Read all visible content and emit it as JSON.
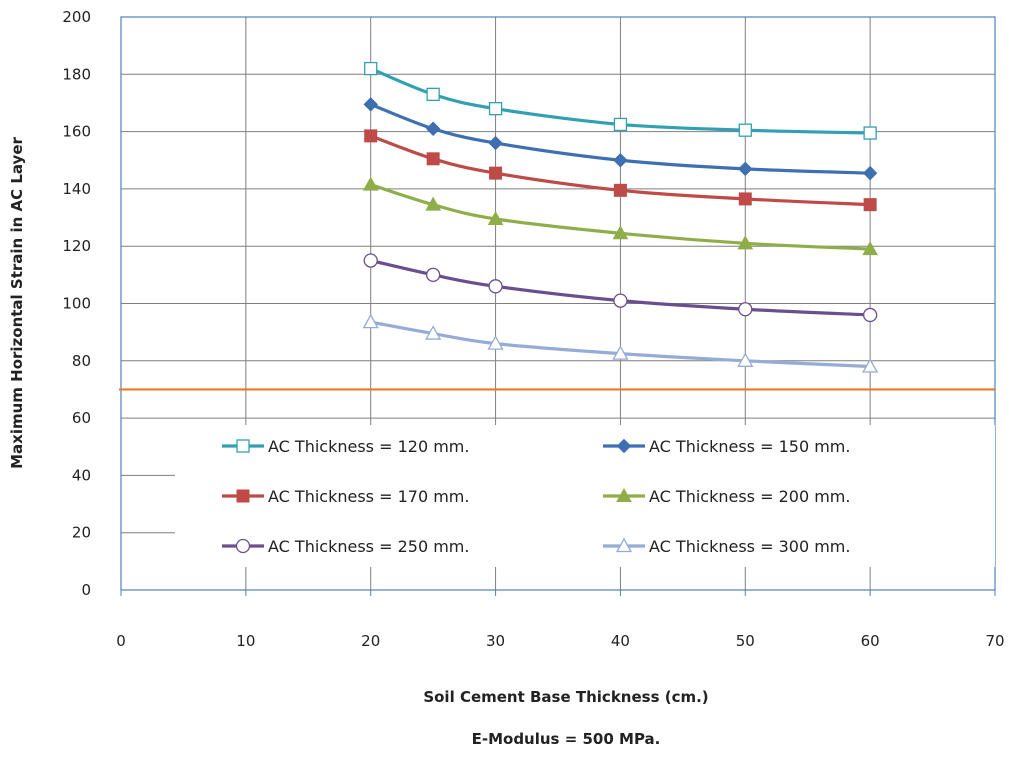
{
  "chart_data": {
    "type": "line",
    "title": "",
    "xlabel": "Soil Cement Base Thickness (cm.)",
    "subtitle": "E-Modulus = 500 MPa.",
    "ylabel": "Maximum Horizontal Strain in AC Layer",
    "xlim": [
      0,
      70
    ],
    "ylim": [
      0,
      200
    ],
    "x_ticks": [
      0,
      10,
      20,
      30,
      40,
      50,
      60,
      70
    ],
    "y_ticks": [
      0,
      20,
      40,
      60,
      80,
      100,
      120,
      140,
      160,
      180,
      200
    ],
    "grid": true,
    "legend_position": "inside-bottom",
    "x": [
      20,
      25,
      30,
      40,
      50,
      60
    ],
    "series": [
      {
        "name": "AC Thickness = 120 mm.",
        "values": [
          182,
          173,
          168,
          162.5,
          160.5,
          159.5
        ],
        "color": "#31a0b3",
        "marker": "square-open"
      },
      {
        "name": "AC Thickness = 150 mm.",
        "values": [
          169.5,
          161,
          156,
          150,
          147,
          145.5
        ],
        "color": "#3e6fb0",
        "marker": "diamond"
      },
      {
        "name": "AC Thickness = 170 mm.",
        "values": [
          158.5,
          150.5,
          145.5,
          139.5,
          136.5,
          134.5
        ],
        "color": "#be4b48",
        "marker": "square"
      },
      {
        "name": "AC Thickness = 200 mm.",
        "values": [
          141.5,
          134.5,
          129.5,
          124.5,
          121,
          119
        ],
        "color": "#8fae4a",
        "marker": "triangle"
      },
      {
        "name": "AC Thickness = 250 mm.",
        "values": [
          115,
          110,
          106,
          101,
          98,
          96
        ],
        "color": "#6b4e8f",
        "marker": "circle-open"
      },
      {
        "name": "AC Thickness = 300 mm.",
        "values": [
          93.5,
          89.5,
          86,
          82.5,
          80,
          78
        ],
        "color": "#95acd6",
        "marker": "triangle-open"
      }
    ],
    "reference_line": {
      "y": 70,
      "color": "#e9792b"
    }
  }
}
